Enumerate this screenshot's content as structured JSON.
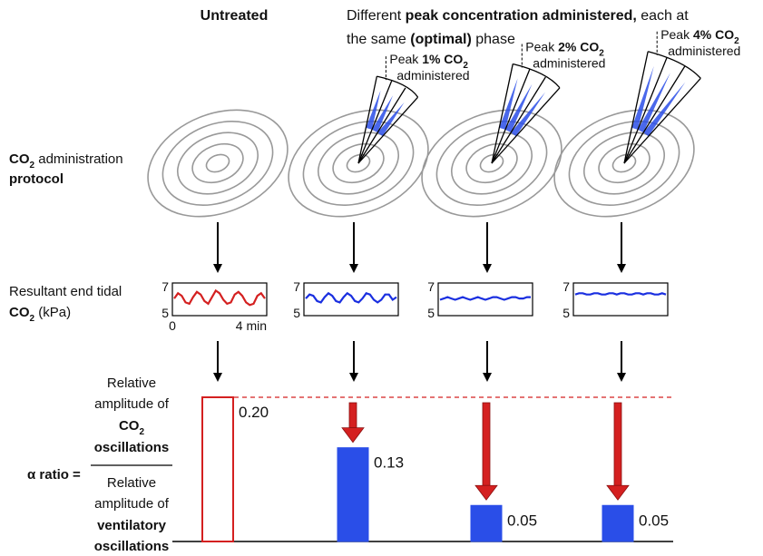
{
  "headings": {
    "untreated": "Untreated",
    "treated_line1": [
      "Different ",
      "peak concentration administered,",
      " each at"
    ],
    "treated_line2": [
      "the same ",
      "(optimal)",
      " phase"
    ]
  },
  "row_labels": {
    "protocol": [
      "CO",
      "2",
      " administration",
      "protocol"
    ],
    "end_tidal": [
      "Resultant end tidal",
      "CO",
      "2",
      " (kPa)"
    ]
  },
  "peaks": [
    {
      "text": [
        "Peak ",
        "1% CO",
        "2",
        "administered"
      ]
    },
    {
      "text": [
        "Peak ",
        "2% CO",
        "2",
        "administered"
      ]
    },
    {
      "text": [
        "Peak ",
        "4% CO",
        "2",
        "administered"
      ]
    }
  ],
  "traces": [
    {
      "color": "#d42020",
      "ylim": [
        5,
        7
      ],
      "yticks": [
        7,
        5
      ],
      "xlim": [
        0,
        4
      ],
      "xticks": [
        0,
        {
          "value": 4,
          "label": "4 min"
        }
      ],
      "values": [
        6.1,
        6.5,
        6.3,
        5.8,
        5.7,
        6.2,
        6.6,
        6.4,
        5.9,
        5.7,
        6.2,
        6.7,
        6.5,
        6.0,
        5.7,
        5.8,
        6.4,
        6.6,
        6.3,
        5.8,
        5.6,
        5.7,
        6.3,
        6.5,
        6.1
      ]
    },
    {
      "color": "#1a2fe0",
      "ylim": [
        5,
        7
      ],
      "yticks": [
        7,
        5
      ],
      "values": [
        6.1,
        6.4,
        6.3,
        5.9,
        5.8,
        6.2,
        6.5,
        6.3,
        5.9,
        5.8,
        6.2,
        6.5,
        6.3,
        5.9,
        5.8,
        6.1,
        6.5,
        6.4,
        6.0,
        5.8,
        6.0,
        6.4,
        6.4,
        6.0,
        6.2
      ]
    },
    {
      "color": "#1a2fe0",
      "ylim": [
        5,
        7
      ],
      "yticks": [
        7,
        5
      ],
      "values": [
        6.0,
        6.1,
        6.2,
        6.1,
        6.0,
        6.1,
        6.2,
        6.1,
        6.0,
        6.1,
        6.2,
        6.1,
        6.0,
        6.1,
        6.2,
        6.2,
        6.1,
        6.0,
        6.1,
        6.2,
        6.2,
        6.1,
        6.1,
        6.2,
        6.2
      ]
    },
    {
      "color": "#1a2fe0",
      "ylim": [
        5,
        7
      ],
      "yticks": [
        7,
        5
      ],
      "values": [
        6.4,
        6.5,
        6.5,
        6.4,
        6.4,
        6.5,
        6.5,
        6.4,
        6.4,
        6.5,
        6.5,
        6.4,
        6.5,
        6.5,
        6.4,
        6.4,
        6.5,
        6.5,
        6.4,
        6.5,
        6.5,
        6.4,
        6.4,
        6.5,
        6.4
      ]
    }
  ],
  "ratio": {
    "label": "α ratio =",
    "numerator": [
      "Relative",
      "amplitude of",
      "CO",
      "2",
      "oscillations"
    ],
    "denominator": [
      "Relative",
      "amplitude of",
      "ventilatory",
      "oscillations"
    ]
  },
  "bars": {
    "values": [
      0.2,
      0.13,
      0.05,
      0.05
    ],
    "value_labels": [
      "0.20",
      "0.13",
      "0.05",
      "0.05"
    ],
    "colors": [
      "#d42020",
      "#2a4ee8",
      "#2a4ee8",
      "#2a4ee8"
    ]
  }
}
